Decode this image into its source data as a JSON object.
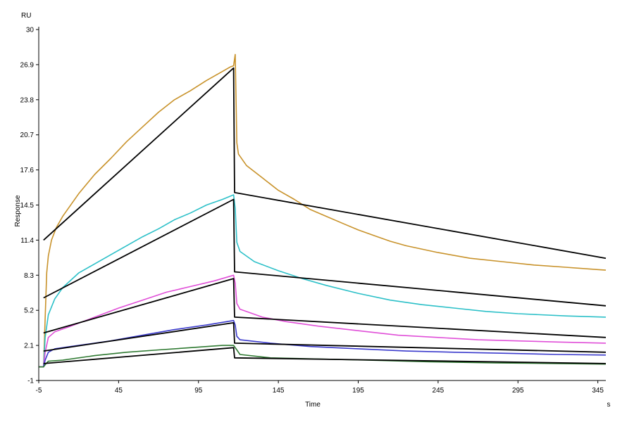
{
  "chart_data": {
    "type": "line",
    "title": "",
    "xlabel": "Time",
    "ylabel": "Response",
    "xunit": "s",
    "yunit": "RU",
    "xlim": [
      -5,
      350
    ],
    "ylim": [
      -1,
      30
    ],
    "xticks": [
      "-5",
      "45",
      "95",
      "145",
      "195",
      "245",
      "295",
      "345"
    ],
    "yticks": [
      "-1",
      "2.1",
      "5.2",
      "8.3",
      "11.4",
      "14.5",
      "17.6",
      "20.7",
      "23.8",
      "26.9",
      "30"
    ],
    "grid": false,
    "legend": "none",
    "series": [
      {
        "color": "#c8922a",
        "kind": "measured",
        "points": [
          [
            -5,
            0.2
          ],
          [
            -2,
            0.2
          ],
          [
            -1,
            4.5
          ],
          [
            0,
            8.5
          ],
          [
            1,
            10
          ],
          [
            3,
            11.4
          ],
          [
            6,
            12.5
          ],
          [
            10,
            13.5
          ],
          [
            20,
            15.5
          ],
          [
            30,
            17.2
          ],
          [
            40,
            18.6
          ],
          [
            50,
            20.1
          ],
          [
            60,
            21.4
          ],
          [
            70,
            22.7
          ],
          [
            80,
            23.8
          ],
          [
            90,
            24.6
          ],
          [
            100,
            25.5
          ],
          [
            110,
            26.3
          ],
          [
            115,
            26.7
          ],
          [
            117,
            26.8
          ],
          [
            118,
            27.8
          ],
          [
            119,
            20
          ],
          [
            120,
            19
          ],
          [
            125,
            18
          ],
          [
            135,
            16.9
          ],
          [
            145,
            15.8
          ],
          [
            155,
            15
          ],
          [
            165,
            14.1
          ],
          [
            175,
            13.5
          ],
          [
            185,
            12.9
          ],
          [
            195,
            12.3
          ],
          [
            205,
            11.8
          ],
          [
            215,
            11.3
          ],
          [
            225,
            10.9
          ],
          [
            245,
            10.3
          ],
          [
            265,
            9.8
          ],
          [
            285,
            9.5
          ],
          [
            305,
            9.2
          ],
          [
            325,
            9.0
          ],
          [
            345,
            8.8
          ],
          [
            350,
            8.75
          ]
        ]
      },
      {
        "color": "#000000",
        "kind": "fit",
        "points": [
          [
            -2,
            11.4
          ],
          [
            117,
            26.6
          ],
          [
            117.6,
            15.6
          ],
          [
            350,
            9.8
          ]
        ]
      },
      {
        "color": "#2cc0c8",
        "kind": "measured",
        "points": [
          [
            -5,
            0.2
          ],
          [
            -2,
            0.2
          ],
          [
            -1,
            2.8
          ],
          [
            1,
            4.8
          ],
          [
            5,
            6.2
          ],
          [
            10,
            7.2
          ],
          [
            20,
            8.5
          ],
          [
            30,
            9.3
          ],
          [
            40,
            10.1
          ],
          [
            50,
            10.9
          ],
          [
            60,
            11.7
          ],
          [
            70,
            12.4
          ],
          [
            80,
            13.2
          ],
          [
            90,
            13.8
          ],
          [
            100,
            14.5
          ],
          [
            110,
            15
          ],
          [
            117,
            15.4
          ],
          [
            118,
            14.2
          ],
          [
            119,
            11.2
          ],
          [
            121,
            10.4
          ],
          [
            130,
            9.5
          ],
          [
            145,
            8.7
          ],
          [
            160,
            8
          ],
          [
            175,
            7.4
          ],
          [
            195,
            6.7
          ],
          [
            215,
            6.1
          ],
          [
            235,
            5.7
          ],
          [
            255,
            5.4
          ],
          [
            275,
            5.1
          ],
          [
            295,
            4.9
          ],
          [
            325,
            4.7
          ],
          [
            350,
            4.6
          ]
        ]
      },
      {
        "color": "#000000",
        "kind": "fit",
        "points": [
          [
            -2,
            6.3
          ],
          [
            117,
            15
          ],
          [
            117.6,
            8.6
          ],
          [
            350,
            5.6
          ]
        ]
      },
      {
        "color": "#e04fd8",
        "kind": "measured",
        "points": [
          [
            -5,
            0.2
          ],
          [
            -2,
            0.2
          ],
          [
            -1,
            1.5
          ],
          [
            1,
            2.8
          ],
          [
            5,
            3.3
          ],
          [
            15,
            3.8
          ],
          [
            30,
            4.6
          ],
          [
            45,
            5.4
          ],
          [
            60,
            6.1
          ],
          [
            75,
            6.8
          ],
          [
            90,
            7.3
          ],
          [
            105,
            7.8
          ],
          [
            117,
            8.3
          ],
          [
            118,
            7.6
          ],
          [
            119,
            5.8
          ],
          [
            121,
            5.3
          ],
          [
            135,
            4.6
          ],
          [
            150,
            4.2
          ],
          [
            170,
            3.8
          ],
          [
            195,
            3.4
          ],
          [
            220,
            3.0
          ],
          [
            245,
            2.8
          ],
          [
            270,
            2.6
          ],
          [
            295,
            2.5
          ],
          [
            320,
            2.4
          ],
          [
            350,
            2.3
          ]
        ]
      },
      {
        "color": "#000000",
        "kind": "fit",
        "points": [
          [
            -2,
            3.2
          ],
          [
            117,
            8.0
          ],
          [
            117.6,
            4.6
          ],
          [
            350,
            2.8
          ]
        ]
      },
      {
        "color": "#3a3acc",
        "kind": "measured",
        "points": [
          [
            -5,
            0.2
          ],
          [
            -2,
            0.2
          ],
          [
            -1,
            0.8
          ],
          [
            1,
            1.5
          ],
          [
            5,
            1.8
          ],
          [
            20,
            2.1
          ],
          [
            40,
            2.5
          ],
          [
            60,
            3
          ],
          [
            80,
            3.5
          ],
          [
            100,
            3.9
          ],
          [
            117,
            4.3
          ],
          [
            118,
            3.9
          ],
          [
            119,
            2.9
          ],
          [
            121,
            2.6
          ],
          [
            140,
            2.3
          ],
          [
            165,
            2.0
          ],
          [
            195,
            1.8
          ],
          [
            225,
            1.6
          ],
          [
            255,
            1.5
          ],
          [
            290,
            1.4
          ],
          [
            320,
            1.3
          ],
          [
            350,
            1.25
          ]
        ]
      },
      {
        "color": "#000000",
        "kind": "fit",
        "points": [
          [
            -2,
            1.6
          ],
          [
            117,
            4.1
          ],
          [
            117.6,
            2.3
          ],
          [
            350,
            1.5
          ]
        ]
      },
      {
        "color": "#2f7a32",
        "kind": "measured",
        "points": [
          [
            -5,
            0.2
          ],
          [
            -2,
            0.2
          ],
          [
            -1,
            0.4
          ],
          [
            1,
            0.7
          ],
          [
            10,
            0.8
          ],
          [
            30,
            1.2
          ],
          [
            50,
            1.5
          ],
          [
            70,
            1.7
          ],
          [
            90,
            1.9
          ],
          [
            110,
            2.1
          ],
          [
            117,
            2.1
          ],
          [
            119,
            1.7
          ],
          [
            121,
            1.3
          ],
          [
            140,
            1.0
          ],
          [
            170,
            0.9
          ],
          [
            200,
            0.8
          ],
          [
            240,
            0.65
          ],
          [
            280,
            0.55
          ],
          [
            320,
            0.5
          ],
          [
            350,
            0.45
          ]
        ]
      },
      {
        "color": "#000000",
        "kind": "fit",
        "points": [
          [
            -2,
            0.5
          ],
          [
            117,
            1.9
          ],
          [
            117.6,
            1.0
          ],
          [
            350,
            0.5
          ]
        ]
      }
    ]
  }
}
